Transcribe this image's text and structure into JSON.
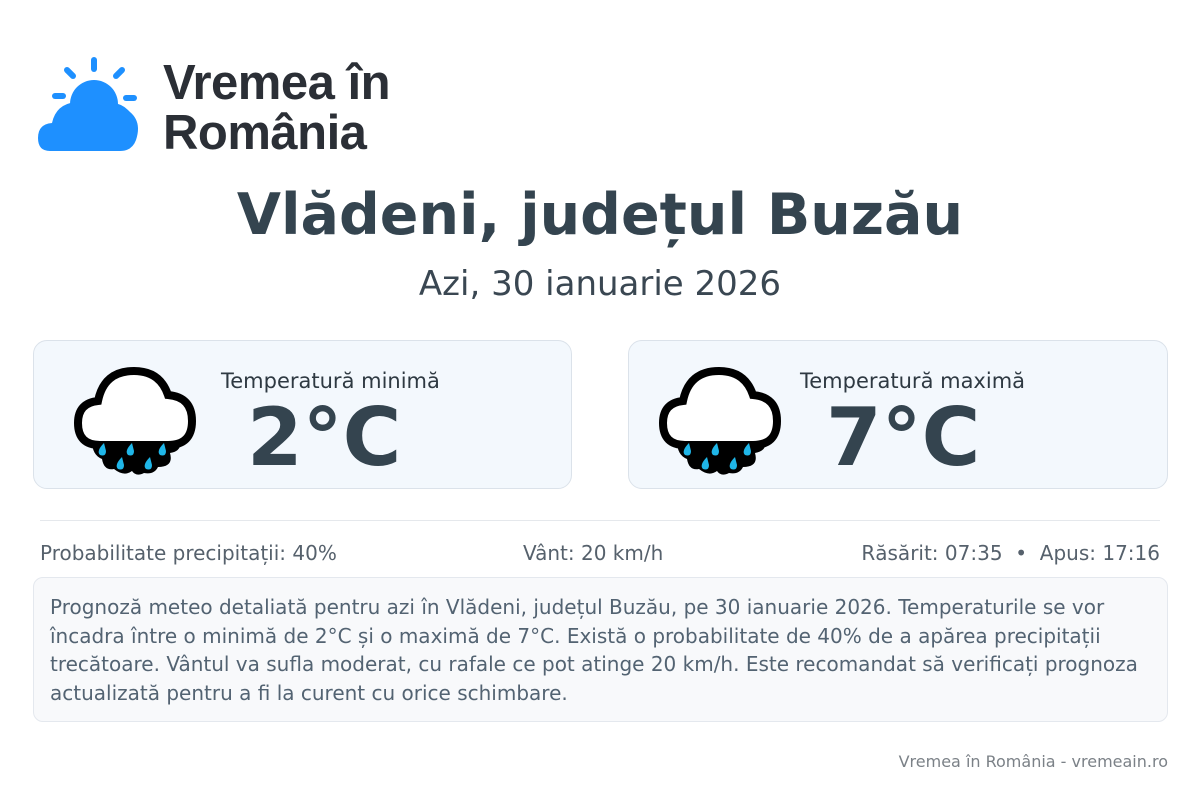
{
  "brand": {
    "line1": "Vremea în",
    "line2": "România",
    "icon": "sun-cloud-icon",
    "color": "#1e90ff"
  },
  "location_title": "Vlădeni, județul Buzău",
  "date_label": "Azi, 30 ianuarie 2026",
  "cards": [
    {
      "icon": "rain-cloud-icon",
      "label": "Temperatură minimă",
      "value": "2°C"
    },
    {
      "icon": "rain-cloud-icon",
      "label": "Temperatură maximă",
      "value": "7°C"
    }
  ],
  "stats": {
    "precipitation": "Probabilitate precipitații: 40%",
    "wind": "Vânt: 20 km/h",
    "sunrise": "Răsărit: 07:35",
    "separator": "•",
    "sunset": "Apus: 17:16"
  },
  "description": "Prognoză meteo detaliată pentru azi în Vlădeni, județul Buzău, pe 30 ianuarie 2026. Temperaturile se vor încadra între o minimă de 2°C și o maximă de 7°C. Există o probabilitate de 40% de a apărea precipitații trecătoare. Vântul va sufla moderat, cu rafale ce pot atinge 20 km/h. Este recomandat să verificați prognoza actualizată pentru a fi la curent cu orice schimbare.",
  "footer": "Vremea în România - vremeain.ro"
}
